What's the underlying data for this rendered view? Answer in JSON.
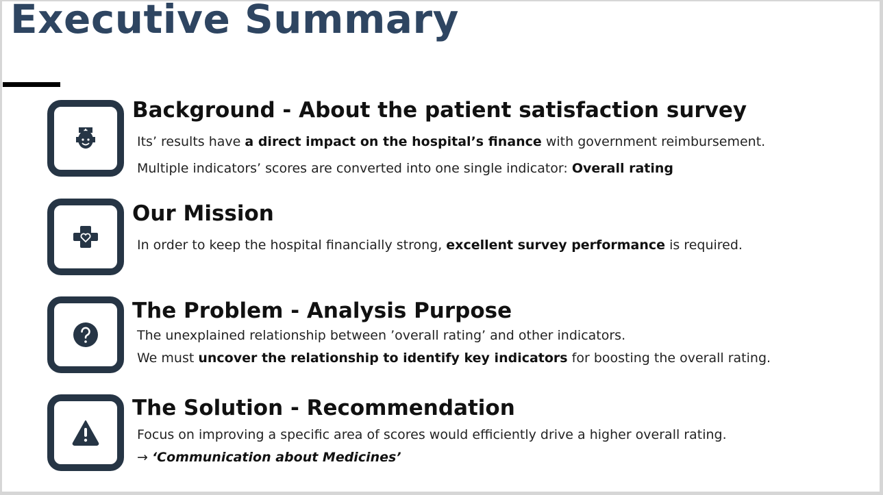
{
  "title": "Executive Summary",
  "sections": [
    {
      "heading": "Background - About the patient satisfaction survey",
      "icon": "doctor-icon",
      "l1_pre": "Its’ results have ",
      "l1_bold": "a direct impact on the hospital’s finance",
      "l1_post": " with government reimbursement.",
      "l2_pre": "Multiple indicators’ scores are converted into one single indicator: ",
      "l2_bold": "Overall rating"
    },
    {
      "heading": "Our Mission",
      "icon": "medical-cross-heart-icon",
      "l1_pre": "In order to keep the hospital financially strong, ",
      "l1_bold": "excellent survey performance",
      "l1_post": " is required."
    },
    {
      "heading": "The Problem - Analysis Purpose",
      "icon": "question-icon",
      "l1_text": "The unexplained relationship between ’overall rating’ and other indicators.",
      "l2_pre": "We must ",
      "l2_bold": "uncover the relationship to identify key indicators",
      "l2_post": " for boosting the overall rating."
    },
    {
      "heading": "The Solution - Recommendation",
      "icon": "warning-icon",
      "l1_text": "Focus on improving a specific area of scores would efficiently drive a higher overall rating.",
      "l2_arrow": "→ ",
      "l2_em": "‘Communication about Medicines’"
    }
  ],
  "colors": {
    "title": "#2e4561",
    "icon": "#263545",
    "text": "#222222"
  }
}
